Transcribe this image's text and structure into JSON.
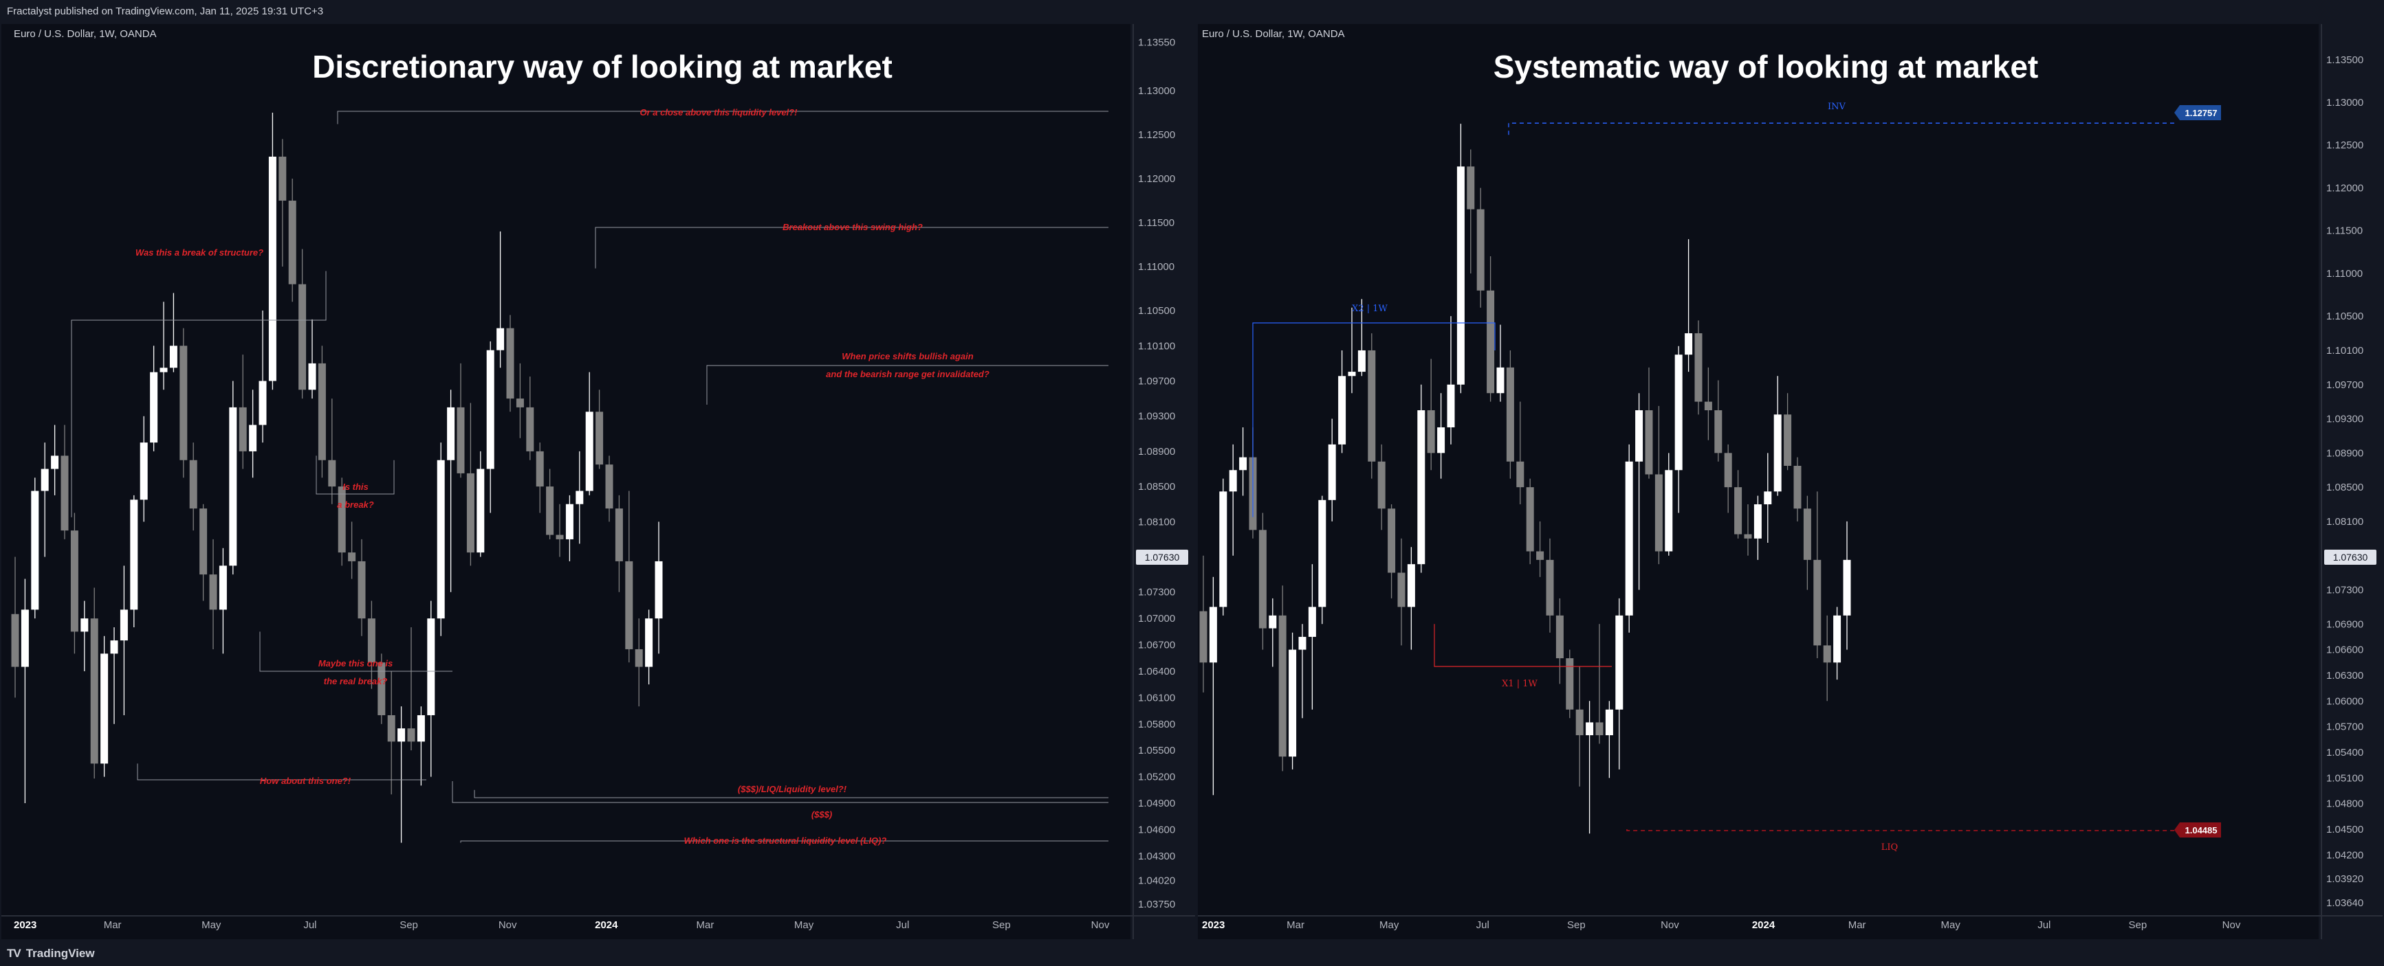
{
  "header": {
    "publish_info": "Fractalyst published on TradingView.com, Jan 11, 2025 19:31 UTC+3"
  },
  "footer": {
    "brand": "TradingView",
    "brand_icon": "tradingview-logo-icon"
  },
  "colors": {
    "bg": "#0b0e17",
    "up": "#ffffff",
    "down": "#808080",
    "annotation_red": "#e0252a",
    "inv_blue": "#2962ff",
    "liq_red": "#b2141d",
    "axis_text": "#b2b5be"
  },
  "left_chart": {
    "symbol": "Euro / U.S. Dollar, 1W, OANDA",
    "title": "Discretionary way of looking at market",
    "price_labels": [
      "1.13550",
      "1.13000",
      "1.12500",
      "1.12000",
      "1.11500",
      "1.11000",
      "1.10500",
      "1.10100",
      "1.09700",
      "1.09300",
      "1.08900",
      "1.08500",
      "1.08100",
      "1.07700",
      "1.07300",
      "1.07000",
      "1.06700",
      "1.06400",
      "1.06100",
      "1.05800",
      "1.05500",
      "1.05200",
      "1.04900",
      "1.04600",
      "1.04300",
      "1.04020",
      "1.03750"
    ],
    "current_price": "1.07630",
    "time_labels": [
      "2023",
      "Mar",
      "May",
      "Jul",
      "Sep",
      "Nov",
      "2024",
      "Mar",
      "May",
      "Jul",
      "Sep",
      "Nov"
    ],
    "annotations": {
      "close_above": "Or a close above this liquidity level?!",
      "swing_high": "Breakout above this swing high?",
      "break_structure": "Was this a break of structure?",
      "shift_bullish_1": "When price shifts bullish again",
      "shift_bullish_2": "and the bearish range get invalidated?",
      "is_this_1": "Is this",
      "is_this_2": "a break?",
      "maybe_1": "Maybe this one is",
      "maybe_2": "the real break?",
      "how_about": "How about this one?!",
      "liq_level": "($$$)/LIQ/Liquidity level?!",
      "dollars": "($$$)",
      "structural": "Which one is the structural liquidity level (LIQ)?"
    }
  },
  "right_chart": {
    "symbol": "Euro / U.S. Dollar, 1W, OANDA",
    "title": "Systematic way of looking at market",
    "price_labels": [
      "1.13500",
      "1.13000",
      "1.12500",
      "1.12000",
      "1.11500",
      "1.11000",
      "1.10500",
      "1.10100",
      "1.09700",
      "1.09300",
      "1.08900",
      "1.08500",
      "1.08100",
      "1.07700",
      "1.07300",
      "1.06900",
      "1.06600",
      "1.06300",
      "1.06000",
      "1.05700",
      "1.05400",
      "1.05100",
      "1.04800",
      "1.04500",
      "1.04200",
      "1.03920",
      "1.03640"
    ],
    "current_price": "1.07630",
    "inv_price": "1.12757",
    "liq_price": "1.04485",
    "inv_label": "INV",
    "liq_label": "LIQ",
    "x2_label": "X2 | 1W",
    "x1_label": "X1 | 1W",
    "time_labels": [
      "2023",
      "Mar",
      "May",
      "Jul",
      "Sep",
      "Nov",
      "2024",
      "Mar",
      "May",
      "Jul",
      "Sep",
      "Nov"
    ]
  },
  "candles": [
    [
      1.0705,
      1.077,
      1.061,
      1.0645
    ],
    [
      1.0645,
      1.0745,
      1.049,
      1.071
    ],
    [
      1.071,
      1.086,
      1.07,
      1.0845
    ],
    [
      1.0845,
      1.09,
      1.077,
      1.087
    ],
    [
      1.087,
      1.092,
      1.084,
      1.0885
    ],
    [
      1.0885,
      1.092,
      1.079,
      1.08
    ],
    [
      1.08,
      1.082,
      1.066,
      1.0685
    ],
    [
      1.0685,
      1.072,
      1.064,
      1.07
    ],
    [
      1.07,
      1.0735,
      1.0518,
      1.0535
    ],
    [
      1.0535,
      1.068,
      1.052,
      1.066
    ],
    [
      1.066,
      1.069,
      1.058,
      1.0675
    ],
    [
      1.0675,
      1.076,
      1.059,
      1.071
    ],
    [
      1.071,
      1.084,
      1.069,
      1.0835
    ],
    [
      1.0835,
      1.093,
      1.081,
      1.09
    ],
    [
      1.09,
      1.101,
      1.089,
      1.098
    ],
    [
      1.098,
      1.106,
      1.096,
      1.0985
    ],
    [
      1.0985,
      1.107,
      1.098,
      1.101
    ],
    [
      1.101,
      1.103,
      1.086,
      1.088
    ],
    [
      1.088,
      1.09,
      1.08,
      1.0825
    ],
    [
      1.0825,
      1.083,
      1.072,
      1.075
    ],
    [
      1.075,
      1.079,
      1.0665,
      1.071
    ],
    [
      1.071,
      1.078,
      1.066,
      1.076
    ],
    [
      1.076,
      1.097,
      1.075,
      1.094
    ],
    [
      1.094,
      1.1,
      1.087,
      1.089
    ],
    [
      1.089,
      1.096,
      1.086,
      1.092
    ],
    [
      1.092,
      1.105,
      1.09,
      1.097
    ],
    [
      1.097,
      1.1275,
      1.096,
      1.1225
    ],
    [
      1.1225,
      1.1245,
      1.11,
      1.1175
    ],
    [
      1.1175,
      1.12,
      1.106,
      1.108
    ],
    [
      1.108,
      1.112,
      1.095,
      1.096
    ],
    [
      1.096,
      1.104,
      1.095,
      1.099
    ],
    [
      1.099,
      1.101,
      1.086,
      1.088
    ],
    [
      1.088,
      1.095,
      1.083,
      1.085
    ],
    [
      1.085,
      1.086,
      1.076,
      1.0775
    ],
    [
      1.0775,
      1.081,
      1.0745,
      1.0765
    ],
    [
      1.0765,
      1.079,
      1.068,
      1.07
    ],
    [
      1.07,
      1.072,
      1.062,
      1.065
    ],
    [
      1.065,
      1.066,
      1.058,
      1.059
    ],
    [
      1.059,
      1.064,
      1.05,
      1.056
    ],
    [
      1.056,
      1.06,
      1.0445,
      1.0575
    ],
    [
      1.0575,
      1.069,
      1.055,
      1.056
    ],
    [
      1.056,
      1.06,
      1.051,
      1.059
    ],
    [
      1.059,
      1.072,
      1.052,
      1.07
    ],
    [
      1.07,
      1.09,
      1.068,
      1.088
    ],
    [
      1.088,
      1.096,
      1.073,
      1.094
    ],
    [
      1.094,
      1.099,
      1.086,
      1.0865
    ],
    [
      1.0865,
      1.0945,
      1.076,
      1.0775
    ],
    [
      1.0775,
      1.089,
      1.077,
      1.087
    ],
    [
      1.087,
      1.1015,
      1.082,
      1.1005
    ],
    [
      1.1005,
      1.114,
      1.0985,
      1.103
    ],
    [
      1.103,
      1.1045,
      1.0935,
      1.095
    ],
    [
      1.095,
      1.099,
      1.0905,
      1.094
    ],
    [
      1.094,
      1.0975,
      1.088,
      1.089
    ],
    [
      1.089,
      1.09,
      1.082,
      1.085
    ],
    [
      1.085,
      1.087,
      1.079,
      1.0795
    ],
    [
      1.0795,
      1.083,
      1.077,
      1.079
    ],
    [
      1.079,
      1.084,
      1.0765,
      1.083
    ],
    [
      1.083,
      1.089,
      1.0785,
      1.0845
    ],
    [
      1.0845,
      1.098,
      1.084,
      1.0935
    ],
    [
      1.0935,
      1.096,
      1.087,
      1.0875
    ],
    [
      1.0875,
      1.0885,
      1.081,
      1.0825
    ],
    [
      1.0825,
      1.084,
      1.073,
      1.0765
    ],
    [
      1.0765,
      1.0845,
      1.065,
      1.0665
    ],
    [
      1.0665,
      1.07,
      1.06,
      1.0645
    ],
    [
      1.0645,
      1.071,
      1.0625,
      1.07
    ],
    [
      1.07,
      1.081,
      1.066,
      1.0765
    ]
  ]
}
